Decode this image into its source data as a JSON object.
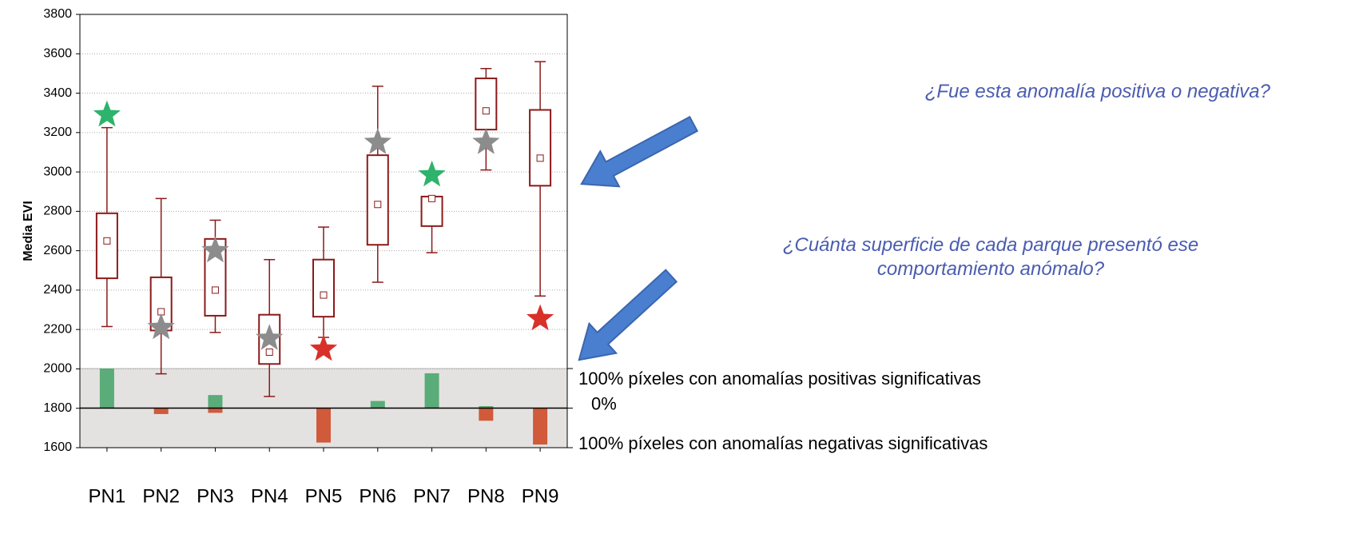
{
  "chart_data": {
    "type": "box",
    "y_label": "Media EVI",
    "categories": [
      "PN1",
      "PN2",
      "PN3",
      "PN4",
      "PN5",
      "PN6",
      "PN7",
      "PN8",
      "PN9"
    ],
    "whislo": [
      2215,
      1975,
      2185,
      1860,
      2160,
      2440,
      2590,
      3010,
      2370
    ],
    "q1": [
      2460,
      2195,
      2270,
      2025,
      2265,
      2630,
      2725,
      3215,
      2930
    ],
    "mean": [
      2650,
      2290,
      2400,
      2085,
      2375,
      2835,
      2865,
      3310,
      3070
    ],
    "q3": [
      2790,
      2465,
      2660,
      2275,
      2555,
      3085,
      2875,
      3475,
      3315
    ],
    "whishi": [
      3225,
      2865,
      2755,
      2555,
      2720,
      3435,
      2875,
      3525,
      3560
    ],
    "box_color": "#8b1a1a",
    "stars": {
      "values": [
        3290,
        2210,
        2600,
        2155,
        2100,
        3150,
        2985,
        3150,
        2255
      ],
      "colors": [
        "#2db36b",
        "#8c8c8c",
        "#8c8c8c",
        "#8c8c8c",
        "#d9302a",
        "#8c8c8c",
        "#2db36b",
        "#8c8c8c",
        "#d9302a"
      ]
    },
    "ylim": [
      1600,
      3800
    ],
    "yticks": [
      1600,
      1800,
      2000,
      2200,
      2400,
      2600,
      2800,
      3000,
      3200,
      3400,
      3600,
      3800
    ],
    "grid": true,
    "series": [
      {
        "name": "positive",
        "color": "#5aac78",
        "axis": "y2",
        "values": [
          100,
          0,
          33,
          0,
          0,
          18,
          88,
          5,
          0
        ]
      },
      {
        "name": "negative",
        "color": "#d05a3a",
        "axis": "y2",
        "values": [
          0,
          -15,
          -12,
          0,
          -87,
          0,
          0,
          -32,
          -92
        ]
      }
    ],
    "y2lim": [
      -100,
      100
    ],
    "y2ticks": [
      {
        "value": 100,
        "label": "100% píxeles con anomalías positivas significativas"
      },
      {
        "value": 0,
        "label": "0%"
      },
      {
        "value": -100,
        "label": "100% píxeles con anomalías negativas significativas"
      }
    ],
    "annotations": [
      "¿Fue esta anomalía positiva o negativa?",
      "¿Cuánta superficie de cada parque presentó ese comportamiento anómalo?"
    ]
  }
}
